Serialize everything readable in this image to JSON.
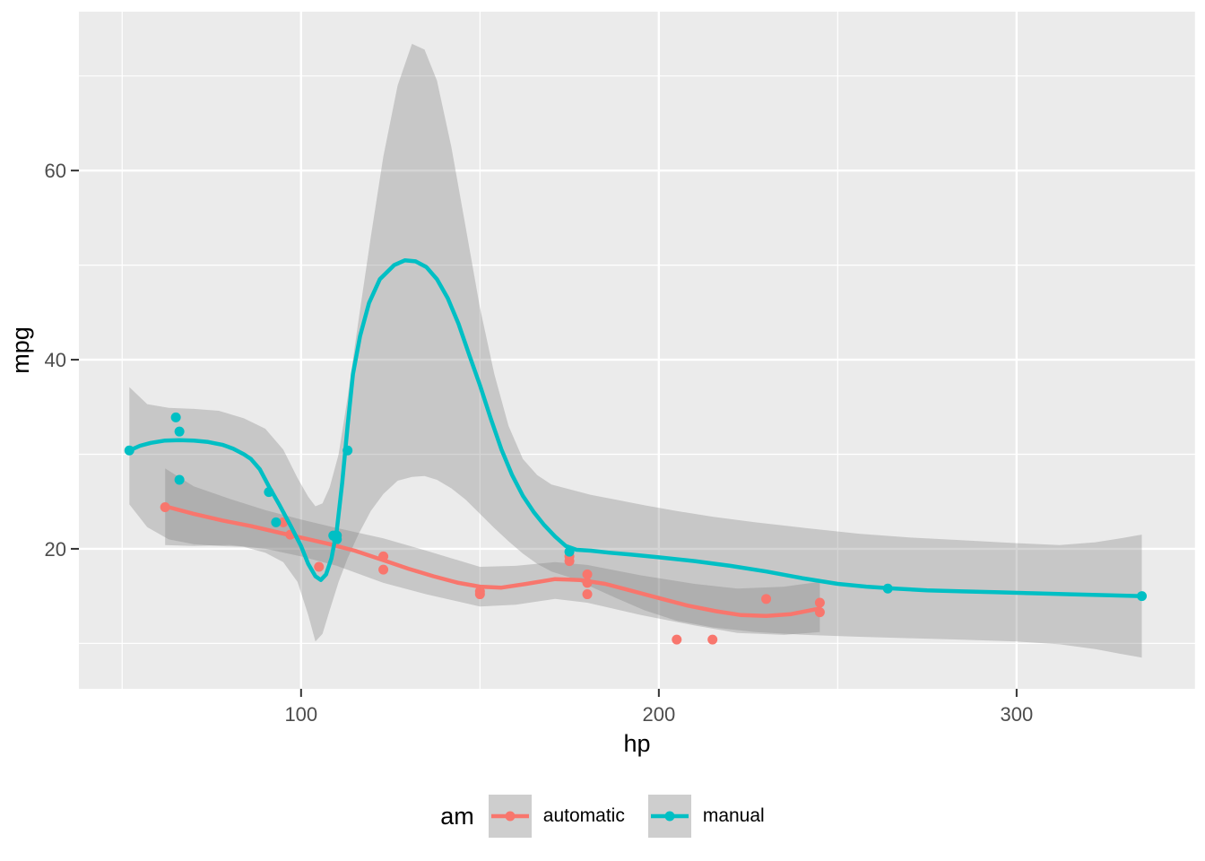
{
  "figure": {
    "background": "#ffffff",
    "panel_background": "#ebebeb",
    "grid_color": "#ffffff",
    "tick_color": "#333333",
    "tick_label_color": "#4d4d4d",
    "ribbon_color": "#7f7f7f",
    "ribbon_opacity": 0.33,
    "legend_key_background": "#cecece"
  },
  "chart_data": {
    "type": "scatter",
    "title": "",
    "xlabel": "hp",
    "ylabel": "mpg",
    "xlim": [
      37.9,
      349.9
    ],
    "ylim": [
      5.2,
      76.8
    ],
    "x_major_ticks": [
      100,
      200,
      300
    ],
    "x_minor_ticks": [
      50,
      150,
      250,
      350
    ],
    "y_major_ticks": [
      20,
      40,
      60
    ],
    "y_minor_ticks": [
      10,
      30,
      50,
      70
    ],
    "grid": true,
    "legend_position": "bottom",
    "legend": {
      "title": "am",
      "entries": [
        {
          "label": "automatic",
          "color": "#F8766D"
        },
        {
          "label": "manual",
          "color": "#00BFC4"
        }
      ]
    },
    "series": [
      {
        "name": "automatic",
        "color": "#F8766D",
        "points": [
          [
            110,
            21.4
          ],
          [
            175,
            18.7
          ],
          [
            105,
            18.1
          ],
          [
            245,
            14.3
          ],
          [
            62,
            24.4
          ],
          [
            95,
            22.8
          ],
          [
            123,
            19.2
          ],
          [
            123,
            17.8
          ],
          [
            180,
            16.4
          ],
          [
            180,
            17.3
          ],
          [
            180,
            15.2
          ],
          [
            205,
            10.4
          ],
          [
            215,
            10.4
          ],
          [
            230,
            14.7
          ],
          [
            97,
            21.5
          ],
          [
            150,
            15.5
          ],
          [
            150,
            15.2
          ],
          [
            245,
            13.3
          ],
          [
            175,
            19.2
          ]
        ],
        "smooth": [
          [
            62,
            24.5
          ],
          [
            70,
            23.7
          ],
          [
            78,
            23.0
          ],
          [
            86,
            22.4
          ],
          [
            94,
            21.7
          ],
          [
            101,
            21.1
          ],
          [
            108,
            20.5
          ],
          [
            115,
            19.8
          ],
          [
            123,
            18.8
          ],
          [
            130,
            17.9
          ],
          [
            137,
            17.1
          ],
          [
            144,
            16.4
          ],
          [
            150,
            16.0
          ],
          [
            156,
            15.9
          ],
          [
            163,
            16.3
          ],
          [
            171,
            16.8
          ],
          [
            178,
            16.7
          ],
          [
            185,
            16.3
          ],
          [
            192,
            15.6
          ],
          [
            200,
            14.8
          ],
          [
            208,
            14.0
          ],
          [
            216,
            13.4
          ],
          [
            223,
            13.0
          ],
          [
            230,
            12.9
          ],
          [
            237,
            13.1
          ],
          [
            245,
            13.7
          ]
        ],
        "ribbon": [
          [
            62,
            20.4,
            28.5
          ],
          [
            70,
            20.3,
            26.6
          ],
          [
            80,
            20.4,
            25.3
          ],
          [
            90,
            20.0,
            24.1
          ],
          [
            100,
            19.2,
            23.1
          ],
          [
            110,
            18.2,
            22.2
          ],
          [
            123,
            16.4,
            21.1
          ],
          [
            135,
            15.2,
            19.8
          ],
          [
            150,
            13.9,
            18.1
          ],
          [
            160,
            14.1,
            18.2
          ],
          [
            171,
            14.7,
            18.6
          ],
          [
            180,
            14.3,
            18.3
          ],
          [
            195,
            13.0,
            17.2
          ],
          [
            210,
            11.9,
            16.3
          ],
          [
            222,
            11.1,
            15.8
          ],
          [
            235,
            10.9,
            16.0
          ],
          [
            245,
            11.2,
            16.5
          ]
        ]
      },
      {
        "name": "manual",
        "color": "#00BFC4",
        "points": [
          [
            110,
            21.0
          ],
          [
            110,
            21.4
          ],
          [
            93,
            22.8
          ],
          [
            66,
            32.4
          ],
          [
            52,
            30.4
          ],
          [
            65,
            33.9
          ],
          [
            66,
            27.3
          ],
          [
            91,
            26.0
          ],
          [
            113,
            30.4
          ],
          [
            264,
            15.8
          ],
          [
            175,
            19.7
          ],
          [
            335,
            15.0
          ],
          [
            109,
            21.4
          ]
        ],
        "smooth": [
          [
            52,
            30.4
          ],
          [
            55,
            30.9
          ],
          [
            58,
            31.2
          ],
          [
            62,
            31.45
          ],
          [
            66,
            31.5
          ],
          [
            70,
            31.45
          ],
          [
            74,
            31.3
          ],
          [
            78,
            31.0
          ],
          [
            81,
            30.6
          ],
          [
            84,
            30.0
          ],
          [
            86,
            29.5
          ],
          [
            88.5,
            28.4
          ],
          [
            91,
            26.6
          ],
          [
            94,
            24.6
          ],
          [
            97,
            22.5
          ],
          [
            100,
            20.3
          ],
          [
            102,
            18.4
          ],
          [
            104,
            17.1
          ],
          [
            105.5,
            16.7
          ],
          [
            107,
            17.3
          ],
          [
            108.5,
            19.0
          ],
          [
            110,
            22.0
          ],
          [
            111.5,
            27.0
          ],
          [
            113,
            33.0
          ],
          [
            114.5,
            38.5
          ],
          [
            116.5,
            42.5
          ],
          [
            119,
            46.0
          ],
          [
            122,
            48.5
          ],
          [
            126,
            50.0
          ],
          [
            129,
            50.5
          ],
          [
            132,
            50.4
          ],
          [
            135,
            49.8
          ],
          [
            138,
            48.5
          ],
          [
            141,
            46.5
          ],
          [
            144,
            43.8
          ],
          [
            147,
            40.5
          ],
          [
            150,
            37.3
          ],
          [
            153,
            33.8
          ],
          [
            156,
            30.5
          ],
          [
            159,
            27.8
          ],
          [
            162,
            25.6
          ],
          [
            165,
            23.9
          ],
          [
            168,
            22.5
          ],
          [
            171,
            21.3
          ],
          [
            174,
            20.3
          ],
          [
            177,
            19.9
          ],
          [
            181,
            19.8
          ],
          [
            186,
            19.6
          ],
          [
            192,
            19.4
          ],
          [
            200,
            19.1
          ],
          [
            210,
            18.7
          ],
          [
            220,
            18.2
          ],
          [
            230,
            17.6
          ],
          [
            240,
            16.9
          ],
          [
            250,
            16.3
          ],
          [
            258,
            16.0
          ],
          [
            266,
            15.8
          ],
          [
            275,
            15.6
          ],
          [
            285,
            15.5
          ],
          [
            295,
            15.4
          ],
          [
            305,
            15.3
          ],
          [
            315,
            15.2
          ],
          [
            325,
            15.1
          ],
          [
            335,
            15.0
          ]
        ],
        "ribbon": [
          [
            52,
            24.7,
            37.1
          ],
          [
            57,
            22.3,
            35.3
          ],
          [
            63,
            21.0,
            34.9
          ],
          [
            70,
            20.5,
            34.8
          ],
          [
            77,
            20.3,
            34.6
          ],
          [
            84,
            20.2,
            33.8
          ],
          [
            90,
            19.6,
            32.7
          ],
          [
            95,
            18.6,
            30.5
          ],
          [
            99,
            16.5,
            27.5
          ],
          [
            102,
            13.0,
            25.5
          ],
          [
            104,
            10.2,
            24.5
          ],
          [
            106,
            11.0,
            24.8
          ],
          [
            108,
            13.5,
            26.5
          ],
          [
            110.5,
            16.5,
            30.0
          ],
          [
            113,
            19.0,
            36.0
          ],
          [
            116,
            21.5,
            44.0
          ],
          [
            119.5,
            24.0,
            53.0
          ],
          [
            123,
            25.8,
            61.5
          ],
          [
            127,
            27.2,
            69.0
          ],
          [
            131,
            27.6,
            73.4
          ],
          [
            134.5,
            27.7,
            72.8
          ],
          [
            138,
            27.3,
            69.5
          ],
          [
            142,
            26.4,
            62.5
          ],
          [
            146,
            25.2,
            54.0
          ],
          [
            150,
            23.7,
            45.5
          ],
          [
            154,
            22.2,
            38.5
          ],
          [
            158,
            20.8,
            33.0
          ],
          [
            162,
            19.5,
            29.5
          ],
          [
            166,
            18.4,
            27.8
          ],
          [
            170,
            17.6,
            26.8
          ],
          [
            175,
            17.0,
            26.3
          ],
          [
            181,
            16.0,
            25.7
          ],
          [
            188,
            14.8,
            25.2
          ],
          [
            196,
            13.5,
            24.6
          ],
          [
            205,
            12.4,
            24.0
          ],
          [
            215,
            11.7,
            23.4
          ],
          [
            227,
            11.2,
            22.8
          ],
          [
            241,
            10.9,
            22.2
          ],
          [
            256,
            10.7,
            21.6
          ],
          [
            270,
            10.55,
            21.2
          ],
          [
            285,
            10.4,
            20.9
          ],
          [
            300,
            10.2,
            20.6
          ],
          [
            312,
            9.9,
            20.4
          ],
          [
            322,
            9.4,
            20.7
          ],
          [
            329,
            8.9,
            21.1
          ],
          [
            335,
            8.5,
            21.5
          ]
        ]
      }
    ]
  }
}
